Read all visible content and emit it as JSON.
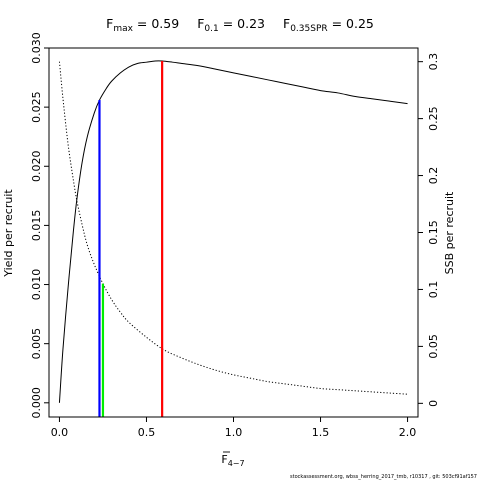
{
  "chart_data": {
    "type": "line",
    "title_parts": [
      {
        "base": "F",
        "sub": "max",
        "eq": " = 0.59"
      },
      {
        "base": "F",
        "sub": "0.1",
        "eq": " = 0.23"
      },
      {
        "base": "F",
        "sub": "0.35SPR",
        "eq": " = 0.25"
      }
    ],
    "xlabel": {
      "base": "F",
      "sub": "4−7"
    },
    "ylabel_left": "Yield per recruit",
    "ylabel_right": "SSB per recruit",
    "xlim": [
      -0.06,
      2.06
    ],
    "ylim_left": [
      -0.0012,
      0.03
    ],
    "ylim_right": [
      -0.012,
      0.312
    ],
    "x_ticks": [
      0,
      0.5,
      1.0,
      1.5,
      2.0
    ],
    "x_tick_labels": [
      "0.0",
      "0.5",
      "1.0",
      "1.5",
      "2.0"
    ],
    "y_left_ticks": [
      0,
      0.005,
      0.01,
      0.015,
      0.02,
      0.025,
      0.03
    ],
    "y_left_tick_labels": [
      "0.000",
      "0.005",
      "0.010",
      "0.015",
      "0.020",
      "0.025",
      "0.030"
    ],
    "y_right_ticks": [
      0,
      0.05,
      0.1,
      0.15,
      0.2,
      0.25,
      0.3
    ],
    "y_right_tick_labels": [
      "0",
      "0.05",
      "0.1",
      "0.15",
      "0.2",
      "0.25",
      "0.3"
    ],
    "series": [
      {
        "name": "Yield per recruit",
        "axis": "left",
        "style": "solid",
        "color": "#000000",
        "x": [
          0,
          0.02,
          0.05,
          0.08,
          0.1,
          0.13,
          0.16,
          0.2,
          0.23,
          0.27,
          0.3,
          0.35,
          0.4,
          0.45,
          0.5,
          0.55,
          0.59,
          0.65,
          0.7,
          0.8,
          0.9,
          1.0,
          1.1,
          1.2,
          1.3,
          1.4,
          1.5,
          1.6,
          1.7,
          1.8,
          1.9,
          2.0
        ],
        "y": [
          0,
          0.0045,
          0.0098,
          0.0145,
          0.0172,
          0.0203,
          0.0225,
          0.0245,
          0.0256,
          0.0266,
          0.0272,
          0.0279,
          0.0284,
          0.0287,
          0.0288,
          0.0289,
          0.0289,
          0.0288,
          0.0287,
          0.0285,
          0.0282,
          0.0279,
          0.0276,
          0.0273,
          0.027,
          0.0267,
          0.0264,
          0.0262,
          0.0259,
          0.0257,
          0.0255,
          0.0253
        ]
      },
      {
        "name": "SSB per recruit",
        "axis": "right",
        "style": "dotted",
        "color": "#000000",
        "x": [
          0,
          0.02,
          0.05,
          0.08,
          0.1,
          0.13,
          0.16,
          0.2,
          0.25,
          0.3,
          0.35,
          0.4,
          0.5,
          0.6,
          0.7,
          0.8,
          0.9,
          1.0,
          1.1,
          1.2,
          1.3,
          1.4,
          1.5,
          1.6,
          1.7,
          1.8,
          1.9,
          2.0
        ],
        "y": [
          0.3,
          0.268,
          0.227,
          0.196,
          0.178,
          0.157,
          0.139,
          0.122,
          0.105,
          0.091,
          0.08,
          0.071,
          0.058,
          0.047,
          0.04,
          0.034,
          0.029,
          0.025,
          0.022,
          0.019,
          0.017,
          0.015,
          0.013,
          0.012,
          0.011,
          0.01,
          0.009,
          0.008
        ]
      }
    ],
    "reference_lines": [
      {
        "label": "F0.1",
        "x": 0.23,
        "y_top": 0.0256,
        "axis": "left",
        "color": "#0000ff"
      },
      {
        "label": "F0.35SPR",
        "x": 0.25,
        "y_top": 0.105,
        "axis": "right",
        "color": "#00ee00"
      },
      {
        "label": "Fmax",
        "x": 0.59,
        "y_top": 0.0289,
        "axis": "left",
        "color": "#ff0000"
      }
    ]
  },
  "footer": {
    "text": "stockassessment.org,  wbss_herring_2017_tmb,  r10317 ,  git: 503cf91af157"
  }
}
